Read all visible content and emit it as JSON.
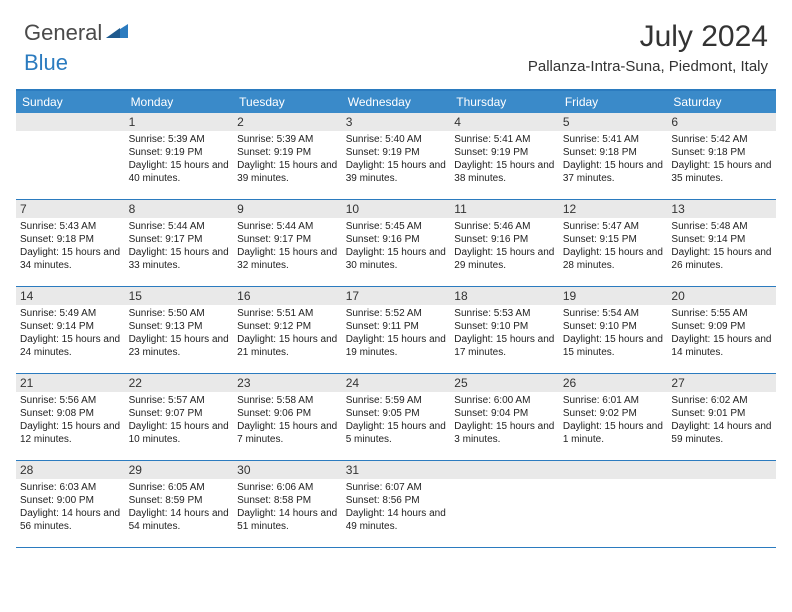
{
  "logo": {
    "text1": "General",
    "text2": "Blue",
    "icon_color": "#2b7bbf"
  },
  "title": "July 2024",
  "location": "Pallanza-Intra-Suna, Piedmont, Italy",
  "colors": {
    "header_bg": "#3a8ac9",
    "border": "#2b7bbf",
    "band_bg": "#e9e9e9",
    "text": "#222222",
    "header_text": "#ffffff"
  },
  "day_names": [
    "Sunday",
    "Monday",
    "Tuesday",
    "Wednesday",
    "Thursday",
    "Friday",
    "Saturday"
  ],
  "weeks": [
    [
      {
        "num": "",
        "sunrise": "",
        "sunset": "",
        "daylight": ""
      },
      {
        "num": "1",
        "sunrise": "Sunrise: 5:39 AM",
        "sunset": "Sunset: 9:19 PM",
        "daylight": "Daylight: 15 hours and 40 minutes."
      },
      {
        "num": "2",
        "sunrise": "Sunrise: 5:39 AM",
        "sunset": "Sunset: 9:19 PM",
        "daylight": "Daylight: 15 hours and 39 minutes."
      },
      {
        "num": "3",
        "sunrise": "Sunrise: 5:40 AM",
        "sunset": "Sunset: 9:19 PM",
        "daylight": "Daylight: 15 hours and 39 minutes."
      },
      {
        "num": "4",
        "sunrise": "Sunrise: 5:41 AM",
        "sunset": "Sunset: 9:19 PM",
        "daylight": "Daylight: 15 hours and 38 minutes."
      },
      {
        "num": "5",
        "sunrise": "Sunrise: 5:41 AM",
        "sunset": "Sunset: 9:18 PM",
        "daylight": "Daylight: 15 hours and 37 minutes."
      },
      {
        "num": "6",
        "sunrise": "Sunrise: 5:42 AM",
        "sunset": "Sunset: 9:18 PM",
        "daylight": "Daylight: 15 hours and 35 minutes."
      }
    ],
    [
      {
        "num": "7",
        "sunrise": "Sunrise: 5:43 AM",
        "sunset": "Sunset: 9:18 PM",
        "daylight": "Daylight: 15 hours and 34 minutes."
      },
      {
        "num": "8",
        "sunrise": "Sunrise: 5:44 AM",
        "sunset": "Sunset: 9:17 PM",
        "daylight": "Daylight: 15 hours and 33 minutes."
      },
      {
        "num": "9",
        "sunrise": "Sunrise: 5:44 AM",
        "sunset": "Sunset: 9:17 PM",
        "daylight": "Daylight: 15 hours and 32 minutes."
      },
      {
        "num": "10",
        "sunrise": "Sunrise: 5:45 AM",
        "sunset": "Sunset: 9:16 PM",
        "daylight": "Daylight: 15 hours and 30 minutes."
      },
      {
        "num": "11",
        "sunrise": "Sunrise: 5:46 AM",
        "sunset": "Sunset: 9:16 PM",
        "daylight": "Daylight: 15 hours and 29 minutes."
      },
      {
        "num": "12",
        "sunrise": "Sunrise: 5:47 AM",
        "sunset": "Sunset: 9:15 PM",
        "daylight": "Daylight: 15 hours and 28 minutes."
      },
      {
        "num": "13",
        "sunrise": "Sunrise: 5:48 AM",
        "sunset": "Sunset: 9:14 PM",
        "daylight": "Daylight: 15 hours and 26 minutes."
      }
    ],
    [
      {
        "num": "14",
        "sunrise": "Sunrise: 5:49 AM",
        "sunset": "Sunset: 9:14 PM",
        "daylight": "Daylight: 15 hours and 24 minutes."
      },
      {
        "num": "15",
        "sunrise": "Sunrise: 5:50 AM",
        "sunset": "Sunset: 9:13 PM",
        "daylight": "Daylight: 15 hours and 23 minutes."
      },
      {
        "num": "16",
        "sunrise": "Sunrise: 5:51 AM",
        "sunset": "Sunset: 9:12 PM",
        "daylight": "Daylight: 15 hours and 21 minutes."
      },
      {
        "num": "17",
        "sunrise": "Sunrise: 5:52 AM",
        "sunset": "Sunset: 9:11 PM",
        "daylight": "Daylight: 15 hours and 19 minutes."
      },
      {
        "num": "18",
        "sunrise": "Sunrise: 5:53 AM",
        "sunset": "Sunset: 9:10 PM",
        "daylight": "Daylight: 15 hours and 17 minutes."
      },
      {
        "num": "19",
        "sunrise": "Sunrise: 5:54 AM",
        "sunset": "Sunset: 9:10 PM",
        "daylight": "Daylight: 15 hours and 15 minutes."
      },
      {
        "num": "20",
        "sunrise": "Sunrise: 5:55 AM",
        "sunset": "Sunset: 9:09 PM",
        "daylight": "Daylight: 15 hours and 14 minutes."
      }
    ],
    [
      {
        "num": "21",
        "sunrise": "Sunrise: 5:56 AM",
        "sunset": "Sunset: 9:08 PM",
        "daylight": "Daylight: 15 hours and 12 minutes."
      },
      {
        "num": "22",
        "sunrise": "Sunrise: 5:57 AM",
        "sunset": "Sunset: 9:07 PM",
        "daylight": "Daylight: 15 hours and 10 minutes."
      },
      {
        "num": "23",
        "sunrise": "Sunrise: 5:58 AM",
        "sunset": "Sunset: 9:06 PM",
        "daylight": "Daylight: 15 hours and 7 minutes."
      },
      {
        "num": "24",
        "sunrise": "Sunrise: 5:59 AM",
        "sunset": "Sunset: 9:05 PM",
        "daylight": "Daylight: 15 hours and 5 minutes."
      },
      {
        "num": "25",
        "sunrise": "Sunrise: 6:00 AM",
        "sunset": "Sunset: 9:04 PM",
        "daylight": "Daylight: 15 hours and 3 minutes."
      },
      {
        "num": "26",
        "sunrise": "Sunrise: 6:01 AM",
        "sunset": "Sunset: 9:02 PM",
        "daylight": "Daylight: 15 hours and 1 minute."
      },
      {
        "num": "27",
        "sunrise": "Sunrise: 6:02 AM",
        "sunset": "Sunset: 9:01 PM",
        "daylight": "Daylight: 14 hours and 59 minutes."
      }
    ],
    [
      {
        "num": "28",
        "sunrise": "Sunrise: 6:03 AM",
        "sunset": "Sunset: 9:00 PM",
        "daylight": "Daylight: 14 hours and 56 minutes."
      },
      {
        "num": "29",
        "sunrise": "Sunrise: 6:05 AM",
        "sunset": "Sunset: 8:59 PM",
        "daylight": "Daylight: 14 hours and 54 minutes."
      },
      {
        "num": "30",
        "sunrise": "Sunrise: 6:06 AM",
        "sunset": "Sunset: 8:58 PM",
        "daylight": "Daylight: 14 hours and 51 minutes."
      },
      {
        "num": "31",
        "sunrise": "Sunrise: 6:07 AM",
        "sunset": "Sunset: 8:56 PM",
        "daylight": "Daylight: 14 hours and 49 minutes."
      },
      {
        "num": "",
        "sunrise": "",
        "sunset": "",
        "daylight": ""
      },
      {
        "num": "",
        "sunrise": "",
        "sunset": "",
        "daylight": ""
      },
      {
        "num": "",
        "sunrise": "",
        "sunset": "",
        "daylight": ""
      }
    ]
  ]
}
